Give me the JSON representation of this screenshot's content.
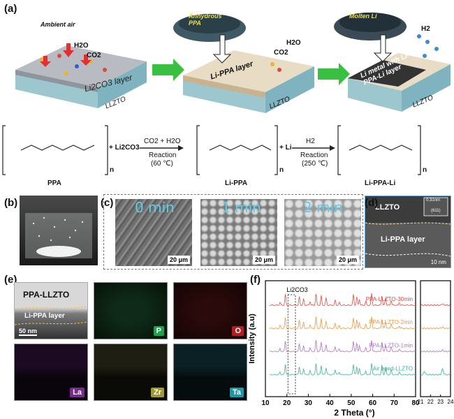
{
  "panel_a": {
    "label": "(a)",
    "ambient_air": "Ambient air",
    "h2o": "H2O",
    "co2": "CO2",
    "li2co3_layer": "Li2CO3 layer",
    "llzto_1": "LLZTO",
    "anhydrous_ppa": "Anhydrous PPA",
    "li_ppa_layer": "Li-PPA layer",
    "llzto_2": "LLZTO",
    "molten_li": "Molten Li",
    "li_metal_label": "Li metal with Li-PPA-Li layer",
    "h2": "H2",
    "llzto_3": "LLZTO",
    "reaction1_reagent": "CO2 + H2O",
    "reaction1_name": "Reaction",
    "reaction1_temp": "(60 ℃)",
    "reaction2_reagent": "H2",
    "reaction2_name": "Reaction",
    "reaction2_temp": "(250 ℃)",
    "plus_li2co3": "+ Li2CO3",
    "plus_li": "+ Li",
    "ppa": "PPA",
    "li_ppa": "Li-PPA",
    "li_ppa_li": "Li-PPA-Li",
    "n": "n"
  },
  "panel_b": {
    "label": "(b)"
  },
  "panel_c": {
    "label": "(c)",
    "times": [
      "0 min",
      "1 min",
      "2 min"
    ],
    "scale": "20 μm"
  },
  "panel_d": {
    "label": "(d)",
    "llzto": "LLZTO",
    "layer": "Li-PPA layer",
    "dspacing": "0.31nm",
    "plane": "(611)",
    "scale": "10 nm"
  },
  "panel_e": {
    "label": "(e)",
    "title": "PPA-LLZTO",
    "layer": "Li-PPA layer",
    "scale": "50 nm",
    "elements": [
      {
        "name": "P",
        "color": "#1fa04a"
      },
      {
        "name": "O",
        "color": "#b02020"
      },
      {
        "name": "La",
        "color": "#7a2a8a"
      },
      {
        "name": "Zr",
        "color": "#a09a2a"
      },
      {
        "name": "Ta",
        "color": "#1a9aa8"
      }
    ]
  },
  "chart_data": {
    "type": "line",
    "label": "(f)",
    "xlabel": "2 Theta (°)",
    "ylabel": "Intensity (a.u)",
    "annotation": "Li2CO3",
    "xlim": [
      10,
      80
    ],
    "xticks": [
      10,
      20,
      30,
      40,
      50,
      60,
      70,
      80
    ],
    "inset_xlim": [
      21,
      24
    ],
    "inset_xticks": [
      21,
      22,
      23,
      24
    ],
    "series": [
      {
        "name": "PPA-LLZTO-30min",
        "color": "#e8483a"
      },
      {
        "name": "PPA-LLZTO-2min",
        "color": "#f0963a"
      },
      {
        "name": "PPA-LLZTO-1min",
        "color": "#b070c8"
      },
      {
        "name": "Air aged-LLZTO",
        "color": "#3ab09a"
      }
    ],
    "peaks": [
      16.8,
      19.3,
      25.8,
      27.8,
      30.8,
      33.6,
      36.0,
      38.3,
      42.5,
      44.4,
      51.0,
      52.6,
      53.8,
      56.8,
      59.5,
      64.3,
      66.0,
      68.6,
      72.4
    ]
  }
}
